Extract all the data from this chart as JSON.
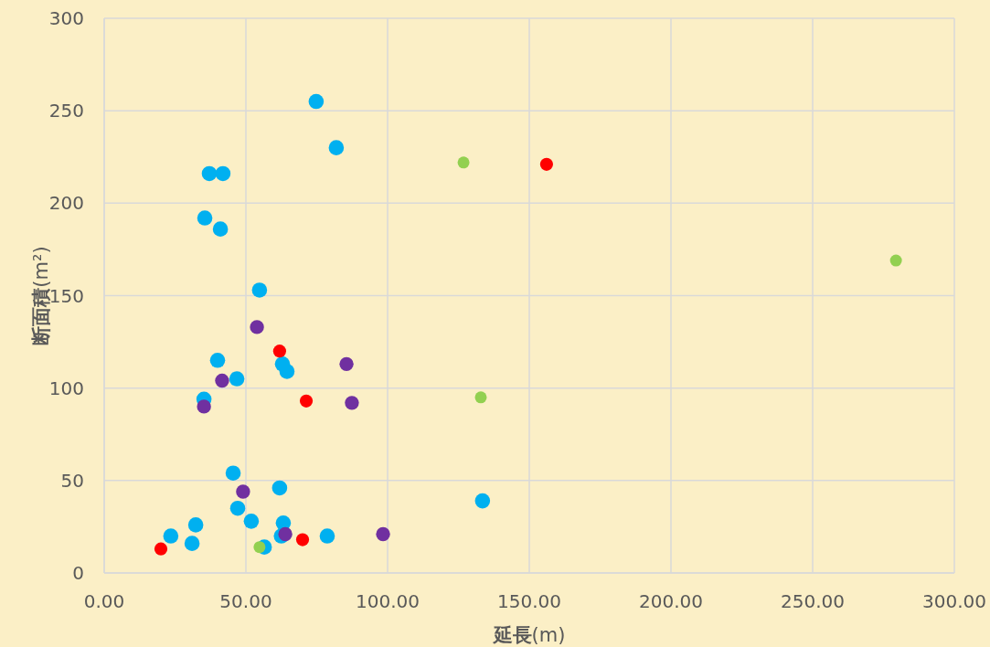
{
  "chart_data": {
    "type": "scatter",
    "xlabel": "**延長**(m)",
    "ylabel": "**断面積**(m²)",
    "marker": "circle",
    "grid": true,
    "xlim": [
      0,
      300
    ],
    "ylim": [
      0,
      300
    ],
    "xticks": [
      {
        "value": 0,
        "label": "0.00"
      },
      {
        "value": 50,
        "label": "50.00"
      },
      {
        "value": 100,
        "label": "100.00"
      },
      {
        "value": 150,
        "label": "150.00"
      },
      {
        "value": 200,
        "label": "200.00"
      },
      {
        "value": 250,
        "label": "250.00"
      },
      {
        "value": 300,
        "label": "300.00"
      }
    ],
    "yticks": [
      0,
      50,
      100,
      150,
      200,
      250,
      300
    ],
    "series": [
      {
        "color": "#00b0f0",
        "x": [
          74.8,
          81.9,
          37.1,
          41.9,
          35.5,
          41.0,
          54.8,
          40.0,
          62.9,
          64.5,
          46.8,
          35.2,
          45.5,
          61.9,
          47.1,
          51.9,
          32.3,
          63.2,
          23.5,
          62.5,
          78.7,
          31.0,
          56.5,
          133.5
        ],
        "values": [
          255,
          230,
          216,
          216,
          192,
          186,
          153,
          115,
          113,
          109,
          105,
          94,
          54,
          46,
          35,
          28,
          26,
          27,
          20,
          20,
          20,
          16,
          14,
          39
        ]
      },
      {
        "color": "#7030a0",
        "x": [
          53.9,
          41.6,
          85.5,
          35.2,
          87.4,
          49.0,
          63.9,
          98.4
        ],
        "values": [
          133,
          104,
          113,
          90,
          92,
          44,
          21,
          21
        ]
      },
      {
        "color": "#ff0000",
        "x": [
          156.1,
          61.9,
          71.3,
          70.0,
          20.0
        ],
        "values": [
          221,
          120,
          93,
          18,
          13
        ]
      },
      {
        "color": "#92d050",
        "x": [
          126.8,
          279.4,
          132.9,
          54.8
        ],
        "values": [
          222,
          169,
          95,
          14
        ]
      }
    ]
  }
}
